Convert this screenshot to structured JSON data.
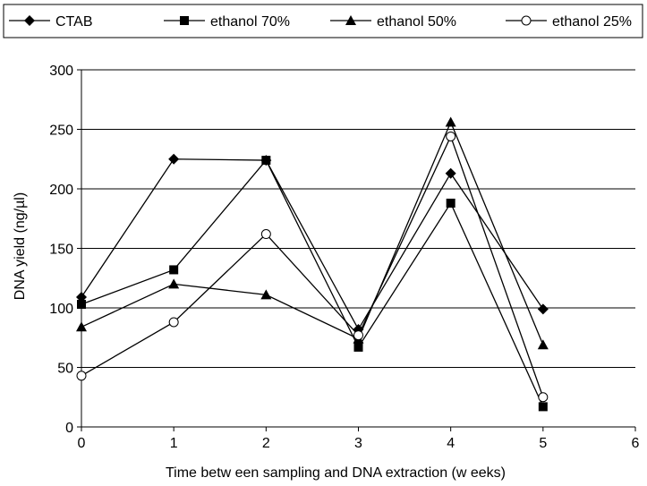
{
  "chart_data": {
    "type": "line",
    "xlabel": "Time betw een sampling and DNA extraction (w eeks)",
    "ylabel": "DNA yield (ng/µl)",
    "xlim": [
      0,
      6
    ],
    "ylim": [
      0,
      300
    ],
    "xticks": [
      "0",
      "1",
      "2",
      "3",
      "4",
      "5",
      "6"
    ],
    "yticks": [
      "0",
      "50",
      "100",
      "150",
      "200",
      "250",
      "300"
    ],
    "grid": "horizontal",
    "legend_position": "top",
    "x": [
      0,
      1,
      2,
      3,
      4,
      5
    ],
    "series": [
      {
        "name": "CTAB",
        "marker": "diamond",
        "color": "#000000",
        "values": [
          109,
          225,
          224,
          82,
          213,
          99
        ]
      },
      {
        "name": "ethanol 70%",
        "marker": "square",
        "color": "#000000",
        "values": [
          103,
          132,
          224,
          67,
          188,
          17
        ]
      },
      {
        "name": "ethanol 50%",
        "marker": "triangle",
        "color": "#000000",
        "values": [
          84,
          120,
          111,
          74,
          256,
          69
        ]
      },
      {
        "name": "ethanol 25%",
        "marker": "circle-open",
        "color": "#000000",
        "values": [
          43,
          88,
          162,
          77,
          244,
          25
        ]
      }
    ]
  }
}
